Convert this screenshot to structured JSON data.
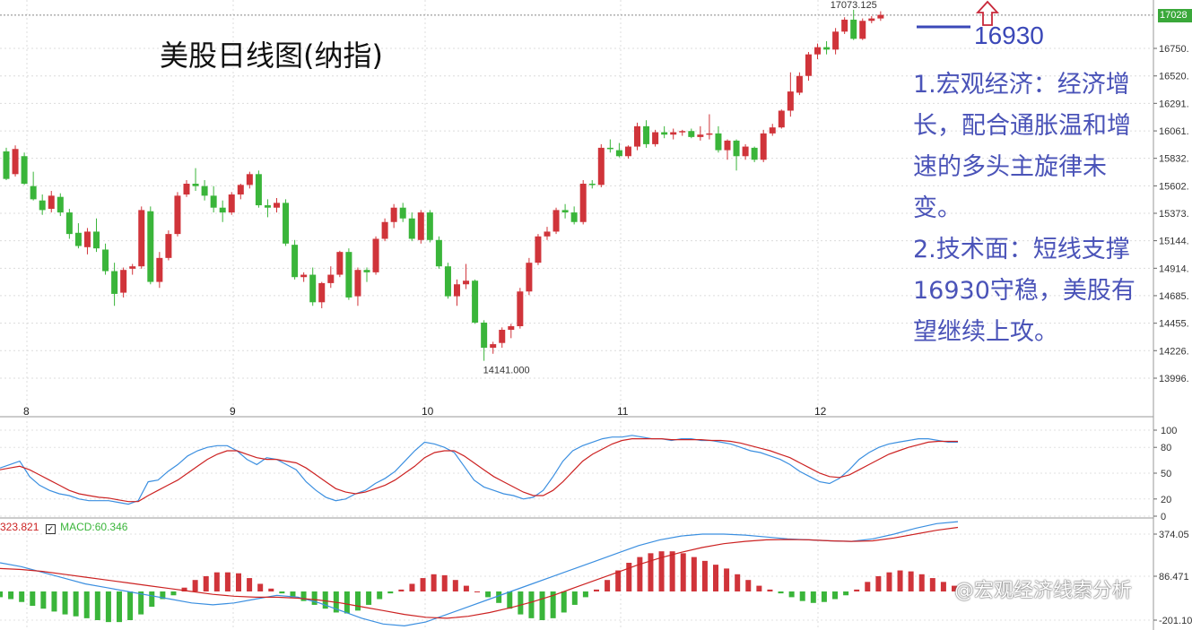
{
  "title": "美股日线图(纳指)",
  "annotation": {
    "support_level": "16930",
    "points": [
      "1.宏观经济：经济增长，配合通胀温和增速的多头主旋律未变。",
      "2.技术面：短线支撑16930守稳，美股有望继续上攻。"
    ]
  },
  "watermark": "@宏观经济线索分析",
  "macd_label": {
    "prefix": "323.821",
    "macd": "MACD:60.346"
  },
  "colors": {
    "up": "#d0343a",
    "down": "#3ab53a",
    "support_line": "#3b48b8",
    "arrow": "#c8283a",
    "kd_fast": "#3b8fe0",
    "kd_slow": "#cc2222"
  },
  "chart_data": [
    {
      "type": "candlestick",
      "title": "美股日线图(纳指)",
      "last_price_label": "17028",
      "high_label": "17073.125",
      "low_label": "14141.000",
      "x_ticks": [
        "8",
        "9",
        "10",
        "11",
        "12"
      ],
      "y_ticks": [
        "16750.",
        "16520.",
        "16291.",
        "16061.",
        "15832.",
        "15602.",
        "15373.",
        "15144.",
        "14914.",
        "14685.",
        "14455.",
        "14226.",
        "13996."
      ],
      "y_tick_values": [
        16750,
        16520,
        16291,
        16061,
        15832,
        15602,
        15373,
        15144,
        14914,
        14685,
        14455,
        14226,
        13996
      ],
      "support_line": 16930,
      "candles": [
        [
          15890,
          15920,
          15650,
          15660
        ],
        [
          15700,
          15940,
          15680,
          15910
        ],
        [
          15850,
          15880,
          15610,
          15620
        ],
        [
          15600,
          15720,
          15480,
          15490
        ],
        [
          15480,
          15530,
          15360,
          15400
        ],
        [
          15410,
          15560,
          15380,
          15520
        ],
        [
          15510,
          15540,
          15350,
          15380
        ],
        [
          15380,
          15410,
          15160,
          15200
        ],
        [
          15210,
          15290,
          15080,
          15100
        ],
        [
          15090,
          15250,
          15030,
          15220
        ],
        [
          15220,
          15330,
          15050,
          15080
        ],
        [
          15070,
          15120,
          14860,
          14890
        ],
        [
          14890,
          14960,
          14600,
          14700
        ],
        [
          14710,
          14920,
          14670,
          14900
        ],
        [
          14910,
          14950,
          14860,
          14930
        ],
        [
          14930,
          15430,
          14910,
          15400
        ],
        [
          15390,
          15430,
          14780,
          14800
        ],
        [
          14800,
          15050,
          14750,
          15000
        ],
        [
          15000,
          15230,
          14980,
          15200
        ],
        [
          15200,
          15550,
          15180,
          15520
        ],
        [
          15530,
          15650,
          15510,
          15620
        ],
        [
          15620,
          15750,
          15560,
          15600
        ],
        [
          15600,
          15650,
          15480,
          15520
        ],
        [
          15520,
          15600,
          15380,
          15420
        ],
        [
          15420,
          15480,
          15300,
          15380
        ],
        [
          15380,
          15550,
          15360,
          15530
        ],
        [
          15530,
          15620,
          15490,
          15610
        ],
        [
          15610,
          15720,
          15580,
          15700
        ],
        [
          15700,
          15730,
          15420,
          15440
        ],
        [
          15440,
          15490,
          15340,
          15420
        ],
        [
          15420,
          15500,
          15380,
          15460
        ],
        [
          15460,
          15490,
          15100,
          15120
        ],
        [
          15110,
          15150,
          14820,
          14840
        ],
        [
          14840,
          14880,
          14800,
          14860
        ],
        [
          14860,
          14920,
          14600,
          14630
        ],
        [
          14630,
          14800,
          14580,
          14790
        ],
        [
          14790,
          14930,
          14750,
          14860
        ],
        [
          14860,
          15060,
          14840,
          15050
        ],
        [
          15050,
          15080,
          14650,
          14670
        ],
        [
          14680,
          14920,
          14600,
          14900
        ],
        [
          14900,
          14920,
          14800,
          14880
        ],
        [
          14880,
          15180,
          14860,
          15160
        ],
        [
          15160,
          15330,
          15140,
          15300
        ],
        [
          15300,
          15450,
          15250,
          15420
        ],
        [
          15420,
          15460,
          15300,
          15330
        ],
        [
          15330,
          15380,
          15140,
          15160
        ],
        [
          15150,
          15400,
          15120,
          15380
        ],
        [
          15380,
          15400,
          15130,
          15150
        ],
        [
          15150,
          15180,
          14910,
          14930
        ],
        [
          14930,
          14960,
          14660,
          14680
        ],
        [
          14680,
          14820,
          14600,
          14780
        ],
        [
          14780,
          14950,
          14740,
          14810
        ],
        [
          14810,
          14820,
          14450,
          14460
        ],
        [
          14460,
          14480,
          14141,
          14250
        ],
        [
          14250,
          14300,
          14200,
          14280
        ],
        [
          14290,
          14420,
          14250,
          14400
        ],
        [
          14400,
          14450,
          14330,
          14430
        ],
        [
          14430,
          14750,
          14410,
          14720
        ],
        [
          14720,
          15000,
          14690,
          14960
        ],
        [
          14960,
          15200,
          14940,
          15180
        ],
        [
          15180,
          15260,
          15150,
          15220
        ],
        [
          15220,
          15420,
          15200,
          15400
        ],
        [
          15400,
          15450,
          15330,
          15380
        ],
        [
          15380,
          15430,
          15280,
          15300
        ],
        [
          15300,
          15650,
          15280,
          15620
        ],
        [
          15620,
          15650,
          15580,
          15610
        ],
        [
          15610,
          15950,
          15590,
          15920
        ],
        [
          15920,
          15990,
          15880,
          15910
        ],
        [
          15900,
          15960,
          15840,
          15850
        ],
        [
          15850,
          15940,
          15830,
          15930
        ],
        [
          15930,
          16130,
          15900,
          16100
        ],
        [
          16100,
          16150,
          15920,
          15950
        ],
        [
          15950,
          16070,
          15930,
          16050
        ],
        [
          16050,
          16100,
          16000,
          16030
        ],
        [
          16030,
          16080,
          15990,
          16050
        ],
        [
          16050,
          16070,
          16020,
          16060
        ],
        [
          16060,
          16080,
          16000,
          16010
        ],
        [
          16010,
          16100,
          15980,
          16030
        ],
        [
          16030,
          16200,
          15990,
          16040
        ],
        [
          16040,
          16100,
          15880,
          15900
        ],
        [
          15900,
          15990,
          15820,
          15980
        ],
        [
          15980,
          15990,
          15730,
          15850
        ],
        [
          15850,
          15950,
          15820,
          15930
        ],
        [
          15920,
          15930,
          15800,
          15820
        ],
        [
          15820,
          16070,
          15800,
          16040
        ],
        [
          16040,
          16120,
          16020,
          16090
        ],
        [
          16090,
          16240,
          16080,
          16230
        ],
        [
          16230,
          16550,
          16180,
          16390
        ],
        [
          16380,
          16550,
          16360,
          16520
        ],
        [
          16520,
          16720,
          16480,
          16700
        ],
        [
          16700,
          16790,
          16660,
          16760
        ],
        [
          16760,
          16810,
          16700,
          16740
        ],
        [
          16740,
          16920,
          16700,
          16890
        ],
        [
          16890,
          17010,
          16870,
          16990
        ],
        [
          16990,
          17073,
          16820,
          16830
        ],
        [
          16830,
          17000,
          16820,
          16980
        ],
        [
          16980,
          17020,
          16960,
          17000
        ],
        [
          17000,
          17060,
          16980,
          17030
        ]
      ]
    },
    {
      "type": "line",
      "title": "",
      "y_ticks": [
        "100",
        "80",
        "50",
        "20",
        "0"
      ],
      "y_tick_values": [
        100,
        80,
        50,
        20,
        0
      ],
      "ylim": [
        0,
        100
      ],
      "series": [
        {
          "values": [
            56,
            60,
            64,
            46,
            36,
            30,
            26,
            24,
            20,
            18,
            18,
            18,
            16,
            14,
            18,
            40,
            42,
            52,
            60,
            70,
            76,
            80,
            82,
            82,
            76,
            66,
            60,
            68,
            66,
            60,
            54,
            40,
            30,
            22,
            18,
            20,
            26,
            30,
            38,
            44,
            52,
            64,
            76,
            86,
            84,
            80,
            74,
            58,
            42,
            34,
            30,
            26,
            24,
            20,
            22,
            30,
            46,
            64,
            76,
            82,
            86,
            90,
            92,
            92,
            94,
            92,
            90,
            90,
            88,
            90,
            90,
            88,
            88,
            86,
            84,
            80,
            76,
            74,
            70,
            66,
            60,
            52,
            46,
            40,
            38,
            44,
            54,
            66,
            74,
            80,
            84,
            86,
            88,
            90,
            90,
            88,
            86,
            86
          ]
        },
        {
          "values": [
            54,
            56,
            58,
            54,
            48,
            42,
            36,
            30,
            26,
            24,
            22,
            21,
            19,
            17,
            17,
            24,
            30,
            36,
            42,
            50,
            58,
            66,
            72,
            76,
            76,
            72,
            68,
            66,
            66,
            64,
            62,
            56,
            48,
            40,
            32,
            28,
            26,
            28,
            32,
            36,
            42,
            50,
            58,
            68,
            74,
            76,
            76,
            70,
            62,
            54,
            46,
            40,
            34,
            28,
            24,
            24,
            30,
            40,
            52,
            64,
            72,
            78,
            84,
            88,
            90,
            90,
            90,
            90,
            89,
            89,
            89,
            89,
            88,
            88,
            87,
            85,
            82,
            79,
            76,
            72,
            68,
            62,
            56,
            50,
            46,
            45,
            48,
            54,
            60,
            66,
            72,
            76,
            80,
            83,
            86,
            87,
            87,
            87
          ]
        }
      ]
    },
    {
      "type": "bar",
      "title": "",
      "y_ticks": [
        "374.05",
        "86.471",
        "-201.10"
      ],
      "y_tick_values": [
        374.05,
        86.471,
        -201.1
      ],
      "macd_value": "MACD:60.346",
      "values": [
        -30,
        -40,
        -55,
        -75,
        -90,
        -105,
        -120,
        -130,
        -140,
        -150,
        -160,
        -160,
        -150,
        -120,
        -80,
        -40,
        -20,
        20,
        60,
        80,
        100,
        100,
        95,
        70,
        40,
        15,
        -10,
        -30,
        -50,
        -70,
        -90,
        -110,
        -115,
        -100,
        -70,
        -40,
        -10,
        10,
        40,
        70,
        90,
        85,
        60,
        30,
        0,
        -30,
        -60,
        -90,
        -120,
        -140,
        -150,
        -140,
        -110,
        -70,
        -30,
        10,
        60,
        110,
        150,
        180,
        200,
        210,
        210,
        200,
        180,
        160,
        140,
        120,
        90,
        60,
        30,
        10,
        -10,
        -30,
        -50,
        -60,
        -55,
        -40,
        -20,
        10,
        50,
        80,
        100,
        110,
        105,
        90,
        70,
        50,
        30
      ]
    },
    {
      "type": "line",
      "title": "",
      "series": [
        {
          "values": [
            150,
            130,
            100,
            70,
            40,
            20,
            0,
            -20,
            -40,
            -60,
            -70,
            -60,
            -40,
            -20,
            -30,
            -60,
            -100,
            -140,
            -170,
            -180,
            -160,
            -120,
            -80,
            -40,
            0,
            40,
            80,
            120,
            160,
            200,
            240,
            270,
            290,
            300,
            300,
            295,
            285,
            275,
            270,
            265,
            262,
            275,
            300,
            330,
            355,
            365
          ]
        },
        {
          "values": [
            120,
            115,
            105,
            90,
            75,
            60,
            45,
            30,
            15,
            0,
            -15,
            -25,
            -30,
            -30,
            -35,
            -45,
            -60,
            -80,
            -100,
            -120,
            -135,
            -140,
            -130,
            -110,
            -85,
            -55,
            -20,
            20,
            60,
            100,
            140,
            175,
            205,
            230,
            250,
            262,
            270,
            272,
            270,
            265,
            262,
            265,
            280,
            300,
            320,
            335
          ]
        }
      ]
    }
  ]
}
